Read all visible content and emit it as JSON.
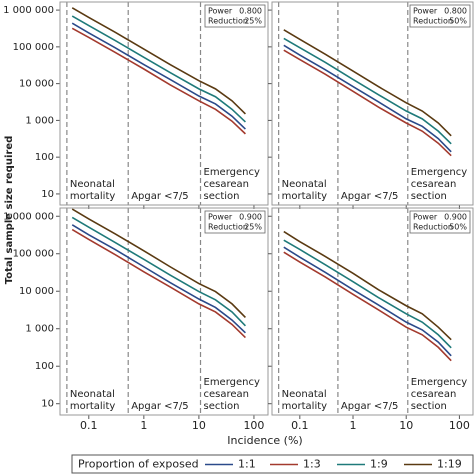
{
  "ylabel": "Total sample size required",
  "xlabel": "Incidence (%)",
  "legend_title": "Proportion of exposed",
  "chart_data": [
    {
      "type": "line",
      "xscale": "log",
      "yscale": "log",
      "xlim": [
        0.03,
        180
      ],
      "ylim": [
        5,
        1660000
      ],
      "xticks": [
        0.1,
        1,
        10,
        100
      ],
      "xtick_labels": false,
      "yticks": [
        10,
        100,
        {
          "value": 1000,
          "label": "1 000"
        },
        {
          "value": 10000,
          "label": "10 000"
        },
        {
          "value": 100000,
          "label": "100 000"
        },
        {
          "value": 1000000,
          "label": "1 000 000"
        }
      ],
      "ytick_labels": true,
      "annotation": [
        [
          "Power",
          "0.800"
        ],
        [
          "Reduction",
          "25%"
        ]
      ],
      "reference_lines": [
        {
          "value": 0.04,
          "label": [
            "Neonatal",
            "mortality"
          ]
        },
        {
          "value": 0.52,
          "label": [
            "Apgar <7/5"
          ]
        },
        {
          "value": 10.7,
          "label": [
            "Emergency",
            "cesarean",
            "section"
          ]
        }
      ],
      "x": [
        0.05,
        0.1,
        0.3,
        1,
        3,
        10,
        20,
        40,
        70
      ],
      "series": [
        {
          "name": "1:1",
          "color": "#2b4a8a",
          "values": [
            440000,
            240000,
            95000,
            33000,
            13000,
            4600,
            2800,
            1300,
            580
          ]
        },
        {
          "name": "1:3",
          "color": "#a33a2e",
          "values": [
            320000,
            180000,
            71000,
            25000,
            9300,
            3400,
            2000,
            950,
            430
          ]
        },
        {
          "name": "1:9",
          "color": "#1f7a7a",
          "values": [
            690000,
            380000,
            150000,
            52000,
            20000,
            7200,
            4400,
            2000,
            910
          ]
        },
        {
          "name": "1:19",
          "color": "#5a3a12",
          "values": [
            1150000,
            630000,
            250000,
            87000,
            33000,
            12000,
            7200,
            3400,
            1500
          ]
        }
      ]
    },
    {
      "type": "line",
      "xscale": "log",
      "yscale": "log",
      "xlim": [
        0.03,
        180
      ],
      "ylim": [
        5,
        1660000
      ],
      "xticks": [
        0.1,
        1,
        10,
        100
      ],
      "xtick_labels": false,
      "yticks": [
        10,
        100,
        1000,
        10000,
        100000,
        1000000
      ],
      "ytick_labels": false,
      "annotation": [
        [
          "Power",
          "0.800"
        ],
        [
          "Reduction",
          "50%"
        ]
      ],
      "reference_lines": [
        {
          "value": 0.04,
          "label": [
            "Neonatal",
            "mortality"
          ]
        },
        {
          "value": 0.52,
          "label": [
            "Apgar <7/5"
          ]
        },
        {
          "value": 10.7,
          "label": [
            "Emergency",
            "cesarean",
            "section"
          ]
        }
      ],
      "x": [
        0.05,
        0.1,
        0.3,
        1,
        3,
        10,
        20,
        40,
        70
      ],
      "series": [
        {
          "name": "1:1",
          "color": "#2b4a8a",
          "values": [
            110000,
            60000,
            24000,
            8300,
            3200,
            1100,
            690,
            320,
            140
          ]
        },
        {
          "name": "1:3",
          "color": "#a33a2e",
          "values": [
            81000,
            45000,
            18000,
            6200,
            2300,
            850,
            510,
            240,
            110
          ]
        },
        {
          "name": "1:9",
          "color": "#1f7a7a",
          "values": [
            170000,
            95000,
            38000,
            13000,
            5000,
            1800,
            1100,
            510,
            230
          ]
        },
        {
          "name": "1:19",
          "color": "#5a3a12",
          "values": [
            290000,
            160000,
            63000,
            22000,
            8300,
            3000,
            1800,
            850,
            380
          ]
        }
      ]
    },
    {
      "type": "line",
      "xscale": "log",
      "yscale": "log",
      "xlim": [
        0.03,
        180
      ],
      "ylim": [
        5,
        1660000
      ],
      "xticks": [
        0.1,
        1,
        10,
        100
      ],
      "xtick_labels": true,
      "yticks": [
        10,
        100,
        {
          "value": 1000,
          "label": "1 000"
        },
        {
          "value": 10000,
          "label": "10 000"
        },
        {
          "value": 100000,
          "label": "100 000"
        },
        {
          "value": 1000000,
          "label": "1 000 000"
        }
      ],
      "ytick_labels": true,
      "annotation": [
        [
          "Power",
          "0.900"
        ],
        [
          "Reduction",
          "25%"
        ]
      ],
      "reference_lines": [
        {
          "value": 0.04,
          "label": [
            "Neonatal",
            "mortality"
          ]
        },
        {
          "value": 0.52,
          "label": [
            "Apgar <7/5"
          ]
        },
        {
          "value": 10.7,
          "label": [
            "Emergency",
            "cesarean",
            "section"
          ]
        }
      ],
      "x": [
        0.05,
        0.1,
        0.3,
        1,
        3,
        10,
        20,
        40,
        70
      ],
      "series": [
        {
          "name": "1:1",
          "color": "#2b4a8a",
          "values": [
            590000,
            320000,
            130000,
            45000,
            17000,
            6200,
            3700,
            1700,
            780
          ]
        },
        {
          "name": "1:3",
          "color": "#a33a2e",
          "values": [
            440000,
            240000,
            95000,
            33000,
            13000,
            4600,
            2800,
            1300,
            580
          ]
        },
        {
          "name": "1:9",
          "color": "#1f7a7a",
          "values": [
            930000,
            510000,
            200000,
            71000,
            27000,
            9800,
            5900,
            2800,
            1200
          ]
        },
        {
          "name": "1:19",
          "color": "#5a3a12",
          "values": [
            1550000,
            850000,
            340000,
            120000,
            45000,
            16000,
            9800,
            4600,
            2000
          ]
        }
      ]
    },
    {
      "type": "line",
      "xscale": "log",
      "yscale": "log",
      "xlim": [
        0.03,
        180
      ],
      "ylim": [
        5,
        1660000
      ],
      "xticks": [
        0.1,
        1,
        10,
        100
      ],
      "xtick_labels": true,
      "yticks": [
        10,
        100,
        1000,
        10000,
        100000,
        1000000
      ],
      "ytick_labels": false,
      "annotation": [
        [
          "Power",
          "0.900"
        ],
        [
          "Reduction",
          "50%"
        ]
      ],
      "reference_lines": [
        {
          "value": 0.04,
          "label": [
            "Neonatal",
            "mortality"
          ]
        },
        {
          "value": 0.52,
          "label": [
            "Apgar <7/5"
          ]
        },
        {
          "value": 10.7,
          "label": [
            "Emergency",
            "cesarean",
            "section"
          ]
        }
      ],
      "x": [
        0.05,
        0.1,
        0.3,
        1,
        3,
        10,
        20,
        40,
        70
      ],
      "series": [
        {
          "name": "1:1",
          "color": "#2b4a8a",
          "values": [
            150000,
            81000,
            32000,
            11000,
            4300,
            1500,
            930,
            440,
            190
          ]
        },
        {
          "name": "1:3",
          "color": "#a33a2e",
          "values": [
            110000,
            60000,
            24000,
            8300,
            3200,
            1100,
            690,
            320,
            140
          ]
        },
        {
          "name": "1:9",
          "color": "#1f7a7a",
          "values": [
            230000,
            130000,
            51000,
            18000,
            6800,
            2500,
            1500,
            690,
            310
          ]
        },
        {
          "name": "1:19",
          "color": "#5a3a12",
          "values": [
            390000,
            210000,
            85000,
            30000,
            11000,
            4100,
            2500,
            1100,
            510
          ]
        }
      ]
    }
  ]
}
